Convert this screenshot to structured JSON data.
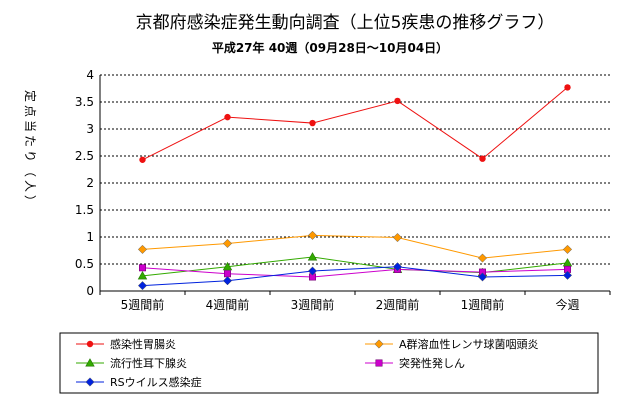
{
  "chart_data": {
    "type": "line",
    "title": "京都府感染症発生動向調査（上位5疾患の推移グラフ）",
    "subtitle": "平成27年 40週（09月28日～10月04日）",
    "ylabel": "定点当たり（人）",
    "xlabel": "",
    "categories": [
      "5週間前",
      "4週間前",
      "3週間前",
      "2週間前",
      "1週間前",
      "今週"
    ],
    "ylim": [
      0,
      4
    ],
    "yticks": [
      "0",
      "0.5",
      "1",
      "1.5",
      "2",
      "2.5",
      "3",
      "3.5",
      "4"
    ],
    "grid": true,
    "legend_position": "bottom",
    "series": [
      {
        "name": "感染性胃腸炎",
        "values": [
          2.43,
          3.22,
          3.11,
          3.52,
          2.45,
          3.77
        ],
        "color": "#ee1111",
        "marker": "circle"
      },
      {
        "name": "A群溶血性レンサ球菌咽頭炎",
        "values": [
          0.77,
          0.88,
          1.03,
          0.99,
          0.61,
          0.77
        ],
        "color": "#ff9900",
        "marker": "diamond"
      },
      {
        "name": "流行性耳下腺炎",
        "values": [
          0.28,
          0.45,
          0.63,
          0.4,
          0.34,
          0.52
        ],
        "color": "#33aa00",
        "marker": "triangle"
      },
      {
        "name": "突発性発しん",
        "values": [
          0.43,
          0.32,
          0.26,
          0.4,
          0.35,
          0.4
        ],
        "color": "#cc00cc",
        "marker": "square"
      },
      {
        "name": "RSウイルス感染症",
        "values": [
          0.1,
          0.19,
          0.37,
          0.45,
          0.26,
          0.29
        ],
        "color": "#0022dd",
        "marker": "diamond"
      }
    ]
  }
}
